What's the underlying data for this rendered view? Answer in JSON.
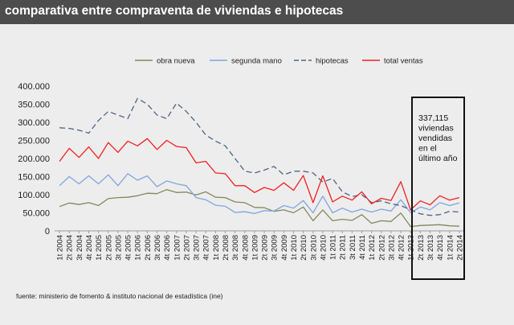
{
  "header": {
    "title": "comparativa entre compraventa de viviendas e hipotecas"
  },
  "footer": {
    "source": "fuente: ministerio de fomento & instituto nacional de estadística (ine)"
  },
  "annotation": {
    "lines": [
      "337,115",
      "viviendas",
      "vendidas",
      "en el",
      "último año"
    ]
  },
  "colors": {
    "obra_nueva": "#7f8a5f",
    "segunda_mano": "#7fa6de",
    "hipotecas": "#4f6486",
    "total_ventas": "#f02020",
    "background": "#ededed",
    "title_bar": "#4d4d4d"
  },
  "chart_data": {
    "type": "line",
    "title": "",
    "xlabel": "",
    "ylabel": "",
    "ylim": [
      0,
      400000
    ],
    "yticks": [
      "0",
      "50.000",
      "100.000",
      "150.000",
      "200.000",
      "250.000",
      "300.000",
      "350.000",
      "400.000"
    ],
    "grid": false,
    "legend_position": "top",
    "categories": [
      "1t 2004",
      "2t 2004",
      "3t 2004",
      "4t 2004",
      "1t 2005",
      "2t 2005",
      "3t 2005",
      "4t 2005",
      "1t 2006",
      "2t 2006",
      "3t 2006",
      "4t 2006",
      "1t 2007",
      "2t 2007",
      "3t 2007",
      "4t 2007",
      "1t 2008",
      "2t 2008",
      "3t 2008",
      "4t 2008",
      "1t 2009",
      "2t 2009",
      "3t 2009",
      "4t 2009",
      "1t 2010",
      "2t 2010",
      "3t 2010",
      "4t 2010",
      "1t 2011",
      "2t 2011",
      "3t 2011",
      "4t 2011",
      "1t 2012",
      "2t 2012",
      "3t 2012",
      "4t 2012",
      "1t 2013",
      "2t 2013",
      "3t 2013",
      "4t 2013",
      "1t 2014",
      "2t 2014"
    ],
    "series": [
      {
        "name": "obra nueva",
        "style": "solid",
        "color_key": "obra_nueva",
        "values": [
          67000,
          77000,
          73000,
          78000,
          70000,
          89000,
          92000,
          93000,
          97000,
          104000,
          103000,
          114000,
          106000,
          107000,
          99000,
          108000,
          93000,
          92000,
          80000,
          78000,
          65000,
          64000,
          54000,
          58000,
          50000,
          66000,
          28000,
          58000,
          28000,
          32000,
          29000,
          45000,
          21000,
          28000,
          26000,
          49000,
          12000,
          15000,
          16000,
          17000,
          14000,
          13000
        ]
      },
      {
        "name": "segunda mano",
        "style": "solid",
        "color_key": "segunda_mano",
        "values": [
          125000,
          150000,
          130000,
          152000,
          130000,
          155000,
          125000,
          158000,
          140000,
          152000,
          122000,
          138000,
          130000,
          125000,
          92000,
          86000,
          71000,
          68000,
          51000,
          53000,
          48000,
          56000,
          55000,
          70000,
          63000,
          84000,
          50000,
          96000,
          50000,
          63000,
          52000,
          60000,
          52000,
          60000,
          55000,
          86000,
          50000,
          66000,
          58000,
          78000,
          70000,
          77000
        ]
      },
      {
        "name": "hipotecas",
        "style": "dashed",
        "color_key": "hipotecas",
        "values": [
          285000,
          283000,
          278000,
          270000,
          305000,
          330000,
          320000,
          310000,
          366000,
          350000,
          320000,
          310000,
          353000,
          330000,
          300000,
          265000,
          248000,
          235000,
          200000,
          165000,
          160000,
          168000,
          178000,
          155000,
          165000,
          165000,
          160000,
          135000,
          145000,
          108000,
          95000,
          100000,
          78000,
          83000,
          75000,
          70000,
          58000,
          47000,
          43000,
          45000,
          54000,
          52000
        ]
      },
      {
        "name": "total ventas",
        "style": "solid",
        "color_key": "total_ventas",
        "values": [
          192000,
          228000,
          203000,
          232000,
          200000,
          244000,
          217000,
          248000,
          235000,
          255000,
          225000,
          250000,
          233000,
          230000,
          188000,
          192000,
          160000,
          158000,
          125000,
          125000,
          106000,
          120000,
          112000,
          133000,
          112000,
          153000,
          78000,
          152000,
          80000,
          96000,
          85000,
          108000,
          75000,
          90000,
          84000,
          136000,
          58000,
          83000,
          72000,
          97000,
          85000,
          92000
        ]
      }
    ]
  }
}
